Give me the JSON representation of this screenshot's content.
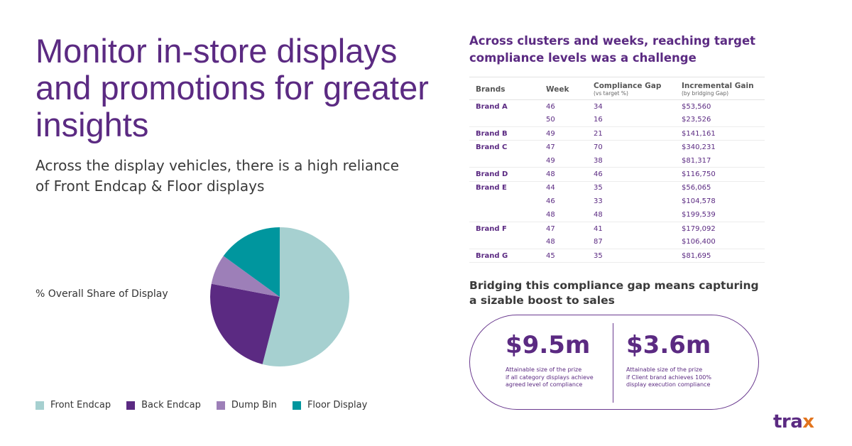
{
  "headline": "Monitor in-store displays and promotions for greater insights",
  "subhead": "Across the display vehicles, there is a high reliance of Front Endcap & Floor displays",
  "chart_data": {
    "type": "pie",
    "title": "% Overall Share of Display",
    "categories": [
      "Front Endcap",
      "Back Endcap",
      "Dump Bin",
      "Floor Display"
    ],
    "values": [
      54,
      24,
      7,
      15
    ],
    "colors": [
      "#a6d0d0",
      "#5b2a82",
      "#9d7fb8",
      "#00969e"
    ],
    "legend": "bottom"
  },
  "table": {
    "title": "Across clusters and weeks, reaching target compliance levels was a challenge",
    "headers": {
      "brands": "Brands",
      "week": "Week",
      "gap": "Compliance Gap",
      "gap_sub": "(vs target %)",
      "gain": "Incremental Gain",
      "gain_sub": "(by bridging Gap)"
    },
    "rows": [
      {
        "brand": "Brand A",
        "week": "46",
        "gap": "34",
        "gain": "$53,560"
      },
      {
        "brand": "",
        "week": "50",
        "gap": "16",
        "gain": "$23,526"
      },
      {
        "brand": "Brand B",
        "week": "49",
        "gap": "21",
        "gain": "$141,161"
      },
      {
        "brand": "Brand C",
        "week": "47",
        "gap": "70",
        "gain": "$340,231"
      },
      {
        "brand": "",
        "week": "49",
        "gap": "38",
        "gain": "$81,317"
      },
      {
        "brand": "Brand D",
        "week": "48",
        "gap": "46",
        "gain": "$116,750"
      },
      {
        "brand": "Brand E",
        "week": "44",
        "gap": "35",
        "gain": "$56,065"
      },
      {
        "brand": "",
        "week": "46",
        "gap": "33",
        "gain": "$104,578"
      },
      {
        "brand": "",
        "week": "48",
        "gap": "48",
        "gain": "$199,539"
      },
      {
        "brand": "Brand F",
        "week": "47",
        "gap": "41",
        "gain": "$179,092"
      },
      {
        "brand": "",
        "week": "48",
        "gap": "87",
        "gain": "$106,400"
      },
      {
        "brand": "Brand G",
        "week": "45",
        "gap": "35",
        "gain": "$81,695"
      }
    ]
  },
  "bridge": {
    "title": "Bridging this compliance gap means capturing a sizable boost to sales",
    "left_value": "$9.5m",
    "left_note_1": "Attainable size of the prize",
    "left_note_2": "if all category displays achieve",
    "left_note_3": "agreed level of compliance",
    "right_value": "$3.6m",
    "right_note_1": "Attainable size of the prize",
    "right_note_2": "if Client brand achieves 100%",
    "right_note_3": "display execution compliance"
  },
  "logo": {
    "main": "tra",
    "accent": "x",
    "accent_color": "#e2741d"
  }
}
